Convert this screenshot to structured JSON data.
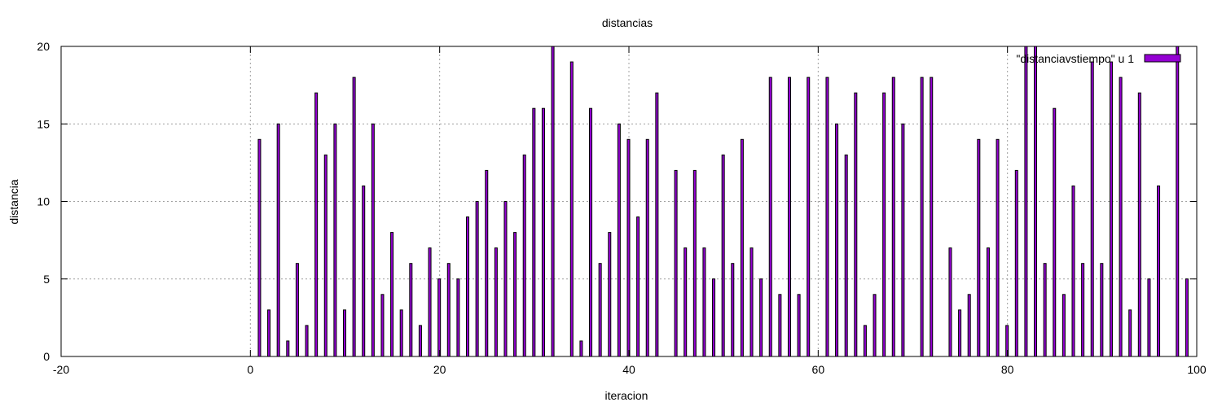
{
  "chart_data": {
    "type": "bar",
    "title": "distancias",
    "xlabel": "iteracion",
    "ylabel": "distancia",
    "xlim": [
      -20,
      100
    ],
    "ylim": [
      0,
      20
    ],
    "xticks": [
      -20,
      0,
      20,
      40,
      60,
      80,
      100
    ],
    "yticks": [
      0,
      5,
      10,
      15,
      20
    ],
    "grid": true,
    "legend_position": "top-right",
    "series": [
      {
        "name": "\"distanciavstiempo\" u 1",
        "color": "#9400d3",
        "x": [
          1,
          2,
          3,
          4,
          5,
          6,
          7,
          8,
          9,
          10,
          11,
          12,
          13,
          14,
          15,
          16,
          17,
          18,
          19,
          20,
          21,
          22,
          23,
          24,
          25,
          26,
          27,
          28,
          29,
          30,
          31,
          32,
          33,
          34,
          35,
          36,
          37,
          38,
          39,
          40,
          41,
          42,
          43,
          44,
          45,
          46,
          47,
          48,
          49,
          50,
          51,
          52,
          53,
          54,
          55,
          56,
          57,
          58,
          59,
          60,
          61,
          62,
          63,
          64,
          65,
          66,
          67,
          68,
          69,
          70,
          71,
          72,
          73,
          74,
          75,
          76,
          77,
          78,
          79,
          80,
          81,
          82,
          83,
          84,
          85,
          86,
          87,
          88,
          89,
          90,
          91,
          92,
          93,
          94,
          95,
          96,
          97,
          98,
          99
        ],
        "values": [
          14,
          3,
          15,
          1,
          6,
          2,
          17,
          13,
          15,
          3,
          18,
          11,
          15,
          4,
          8,
          3,
          6,
          2,
          7,
          5,
          6,
          5,
          9,
          10,
          12,
          7,
          10,
          8,
          13,
          16,
          16,
          20,
          0,
          19,
          1,
          16,
          6,
          8,
          15,
          14,
          9,
          14,
          17,
          0,
          12,
          7,
          12,
          7,
          5,
          13,
          6,
          14,
          7,
          5,
          18,
          4,
          18,
          4,
          18,
          0,
          18,
          15,
          13,
          17,
          2,
          4,
          17,
          18,
          15,
          0,
          18,
          18,
          0,
          7,
          3,
          4,
          14,
          7,
          14,
          2,
          12,
          20,
          20,
          6,
          16,
          4,
          11,
          6,
          19,
          6,
          19,
          18,
          3,
          17,
          5,
          11,
          0,
          20,
          5
        ]
      }
    ]
  }
}
